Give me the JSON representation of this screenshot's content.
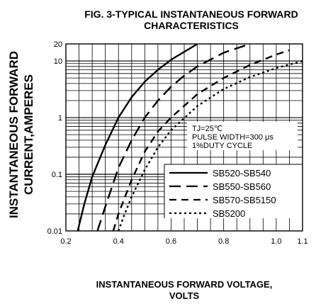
{
  "chart_data": {
    "type": "line",
    "title": "FIG. 3-TYPICAL INSTANTANEOUS FORWARD",
    "subtitle": "CHARACTERISTICS",
    "xlabel": "INSTANTANEOUS FORWARD VOLTAGE,",
    "xlabel_unit": "VOLTS",
    "ylabel": "INSTANTANEOUS FORWARD",
    "ylabel_unit": "CURRENT,AMPERES",
    "x_scale": "linear",
    "y_scale": "log",
    "xlim": [
      0.2,
      1.1
    ],
    "ylim": [
      0.01,
      20
    ],
    "x_ticks": [
      "0.2",
      "0.4",
      "0.6",
      "0.8",
      "1.0",
      "1.1"
    ],
    "x_tick_values": [
      0.2,
      0.4,
      0.6,
      0.8,
      1.0,
      1.1
    ],
    "y_ticks": [
      "20",
      "10",
      "1",
      "0.1",
      "0.01"
    ],
    "y_tick_values": [
      20,
      10,
      1,
      0.1,
      0.01
    ],
    "grid": true,
    "conditions": [
      "TJ=25℃",
      "PULSE WIDTH=300 μs",
      "1%DUTY CYCLE"
    ],
    "legend_position": "lower-right",
    "series": [
      {
        "name": "SB520-SB540",
        "dash": "solid",
        "x": [
          0.245,
          0.27,
          0.3,
          0.35,
          0.4,
          0.45,
          0.5,
          0.55,
          0.6,
          0.65,
          0.7
        ],
        "y": [
          0.01,
          0.03,
          0.09,
          0.33,
          1.0,
          2.3,
          4.3,
          7.0,
          10.5,
          14.5,
          20.0
        ]
      },
      {
        "name": "SB550-SB560",
        "dash": "long-dash",
        "x": [
          0.32,
          0.35,
          0.4,
          0.45,
          0.5,
          0.55,
          0.6,
          0.65,
          0.7,
          0.8,
          0.9
        ],
        "y": [
          0.01,
          0.027,
          0.13,
          0.4,
          1.0,
          2.0,
          3.5,
          5.5,
          8.0,
          14.0,
          20.0
        ]
      },
      {
        "name": "SB570-SB5150",
        "dash": "dash",
        "x": [
          0.38,
          0.4,
          0.45,
          0.5,
          0.55,
          0.6,
          0.7,
          0.8,
          0.9,
          1.0,
          1.05
        ],
        "y": [
          0.01,
          0.02,
          0.08,
          0.25,
          0.57,
          1.0,
          2.6,
          5.0,
          8.5,
          13.0,
          15.5
        ]
      },
      {
        "name": "SB5200",
        "dash": "dot",
        "x": [
          0.4,
          0.42,
          0.45,
          0.5,
          0.55,
          0.6,
          0.7,
          0.8,
          0.9,
          1.0,
          1.1
        ],
        "y": [
          0.01,
          0.018,
          0.04,
          0.12,
          0.3,
          0.6,
          1.6,
          3.2,
          5.2,
          7.5,
          10.0
        ]
      }
    ]
  }
}
